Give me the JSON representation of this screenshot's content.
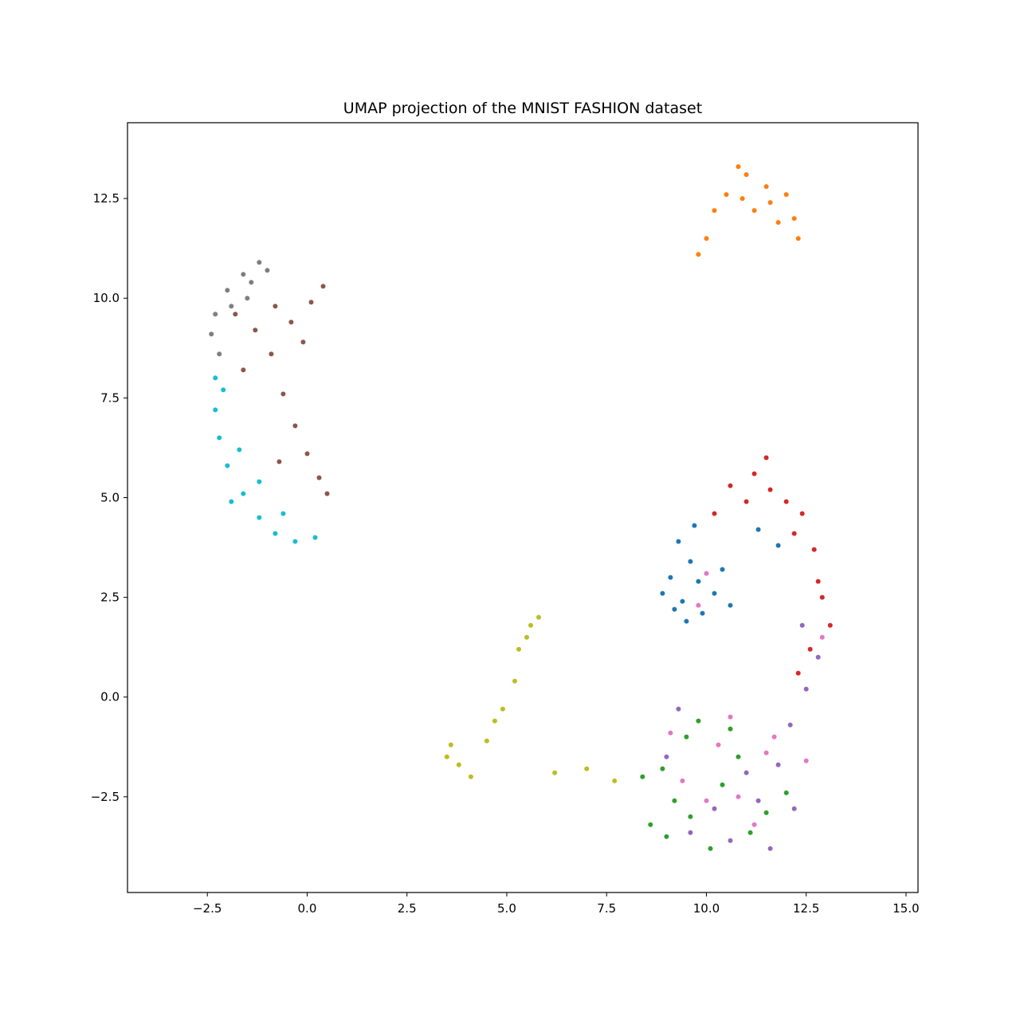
{
  "chart_data": {
    "type": "scatter",
    "title": "UMAP projection of the MNIST FASHION dataset",
    "xlabel": "",
    "ylabel": "",
    "xlim": [
      -4.5,
      15.3
    ],
    "ylim": [
      -4.9,
      14.4
    ],
    "xticks": [
      -2.5,
      0.0,
      2.5,
      5.0,
      7.5,
      10.0,
      12.5,
      15.0
    ],
    "xtick_labels": [
      "−2.5",
      "0.0",
      "2.5",
      "5.0",
      "7.5",
      "10.0",
      "12.5",
      "15.0"
    ],
    "yticks": [
      -2.5,
      0.0,
      2.5,
      5.0,
      7.5,
      10.0,
      12.5
    ],
    "ytick_labels": [
      "−2.5",
      "0.0",
      "2.5",
      "5.0",
      "7.5",
      "10.0",
      "12.5"
    ],
    "grid": false,
    "legend": "none",
    "clusters": [
      {
        "color": "#1f77b4",
        "points": [
          [
            9.3,
            3.9
          ],
          [
            9.6,
            3.4
          ],
          [
            9.8,
            2.9
          ],
          [
            9.4,
            2.4
          ],
          [
            9.9,
            2.1
          ],
          [
            10.2,
            2.6
          ],
          [
            9.1,
            3.0
          ],
          [
            8.9,
            2.6
          ],
          [
            9.7,
            4.3
          ],
          [
            10.4,
            3.2
          ],
          [
            9.5,
            1.9
          ],
          [
            10.6,
            2.3
          ],
          [
            11.3,
            4.2
          ],
          [
            11.8,
            3.8
          ],
          [
            9.2,
            2.2
          ]
        ]
      },
      {
        "color": "#ff7f0e",
        "points": [
          [
            10.5,
            12.6
          ],
          [
            11.0,
            13.1
          ],
          [
            11.5,
            12.8
          ],
          [
            12.0,
            12.6
          ],
          [
            11.2,
            12.2
          ],
          [
            11.8,
            11.9
          ],
          [
            12.2,
            12.0
          ],
          [
            10.2,
            12.2
          ],
          [
            10.0,
            11.5
          ],
          [
            9.8,
            11.1
          ],
          [
            11.6,
            12.4
          ],
          [
            10.8,
            13.3
          ],
          [
            12.3,
            11.5
          ],
          [
            10.9,
            12.5
          ]
        ]
      },
      {
        "color": "#2ca02c",
        "points": [
          [
            8.9,
            -1.8
          ],
          [
            9.2,
            -2.6
          ],
          [
            9.0,
            -3.5
          ],
          [
            9.6,
            -3.0
          ],
          [
            10.1,
            -3.8
          ],
          [
            10.4,
            -2.2
          ],
          [
            9.5,
            -1.0
          ],
          [
            11.5,
            -2.9
          ],
          [
            12.0,
            -2.4
          ],
          [
            10.8,
            -1.5
          ],
          [
            9.8,
            -0.6
          ],
          [
            8.6,
            -3.2
          ],
          [
            11.1,
            -3.4
          ],
          [
            8.4,
            -2.0
          ],
          [
            10.6,
            -0.8
          ]
        ]
      },
      {
        "color": "#d62728",
        "points": [
          [
            11.2,
            5.6
          ],
          [
            11.6,
            5.2
          ],
          [
            12.0,
            4.9
          ],
          [
            12.4,
            4.6
          ],
          [
            11.0,
            4.9
          ],
          [
            10.6,
            5.3
          ],
          [
            11.5,
            6.0
          ],
          [
            12.2,
            4.1
          ],
          [
            12.7,
            3.7
          ],
          [
            12.9,
            2.5
          ],
          [
            13.1,
            1.8
          ],
          [
            12.6,
            1.2
          ],
          [
            12.3,
            0.6
          ],
          [
            12.8,
            2.9
          ],
          [
            10.2,
            4.6
          ]
        ]
      },
      {
        "color": "#9467bd",
        "points": [
          [
            9.3,
            -0.3
          ],
          [
            9.0,
            -1.5
          ],
          [
            9.6,
            -3.4
          ],
          [
            10.6,
            -3.6
          ],
          [
            11.3,
            -2.6
          ],
          [
            11.8,
            -1.7
          ],
          [
            12.1,
            -0.7
          ],
          [
            12.5,
            0.2
          ],
          [
            12.8,
            1.0
          ],
          [
            12.2,
            -2.8
          ],
          [
            11.0,
            -1.9
          ],
          [
            10.2,
            -2.8
          ],
          [
            11.6,
            -3.8
          ],
          [
            12.4,
            1.8
          ]
        ]
      },
      {
        "color": "#8c564b",
        "points": [
          [
            -0.8,
            9.8
          ],
          [
            -0.4,
            9.4
          ],
          [
            0.1,
            9.9
          ],
          [
            0.4,
            10.3
          ],
          [
            -0.9,
            8.6
          ],
          [
            -0.6,
            7.6
          ],
          [
            -0.3,
            6.8
          ],
          [
            0.0,
            6.1
          ],
          [
            0.3,
            5.5
          ],
          [
            0.5,
            5.1
          ],
          [
            -1.3,
            9.2
          ],
          [
            -0.1,
            8.9
          ],
          [
            -1.6,
            8.2
          ],
          [
            -0.7,
            5.9
          ],
          [
            -1.8,
            9.6
          ]
        ]
      },
      {
        "color": "#e377c2",
        "points": [
          [
            10.0,
            -2.6
          ],
          [
            10.3,
            -1.2
          ],
          [
            9.4,
            -2.1
          ],
          [
            11.7,
            -1.0
          ],
          [
            11.2,
            -3.2
          ],
          [
            10.6,
            -0.5
          ],
          [
            9.8,
            2.3
          ],
          [
            10.0,
            3.1
          ],
          [
            12.5,
            -1.6
          ],
          [
            9.1,
            -0.9
          ],
          [
            10.8,
            -2.5
          ],
          [
            11.5,
            -1.4
          ],
          [
            12.9,
            1.5
          ]
        ]
      },
      {
        "color": "#7f7f7f",
        "points": [
          [
            -1.6,
            10.6
          ],
          [
            -1.2,
            10.9
          ],
          [
            -2.0,
            10.2
          ],
          [
            -1.5,
            10.0
          ],
          [
            -2.3,
            9.6
          ],
          [
            -1.0,
            10.7
          ],
          [
            -2.2,
            8.6
          ],
          [
            -1.9,
            9.8
          ],
          [
            -1.4,
            10.4
          ],
          [
            -2.4,
            9.1
          ]
        ]
      },
      {
        "color": "#bcbd22",
        "points": [
          [
            3.6,
            -1.2
          ],
          [
            3.8,
            -1.7
          ],
          [
            4.1,
            -2.0
          ],
          [
            4.5,
            -1.1
          ],
          [
            4.9,
            -0.3
          ],
          [
            5.2,
            0.4
          ],
          [
            5.3,
            1.2
          ],
          [
            5.6,
            1.8
          ],
          [
            5.8,
            2.0
          ],
          [
            6.2,
            -1.9
          ],
          [
            7.0,
            -1.8
          ],
          [
            7.7,
            -2.1
          ],
          [
            3.5,
            -1.5
          ],
          [
            5.5,
            1.5
          ],
          [
            4.7,
            -0.6
          ]
        ]
      },
      {
        "color": "#17becf",
        "points": [
          [
            -2.3,
            8.0
          ],
          [
            -2.3,
            7.2
          ],
          [
            -2.2,
            6.5
          ],
          [
            -2.0,
            5.8
          ],
          [
            -1.6,
            5.1
          ],
          [
            -1.2,
            4.5
          ],
          [
            -0.8,
            4.1
          ],
          [
            -0.3,
            3.9
          ],
          [
            0.2,
            4.0
          ],
          [
            -1.7,
            6.2
          ],
          [
            -1.2,
            5.4
          ],
          [
            -2.1,
            7.7
          ],
          [
            -0.6,
            4.6
          ],
          [
            -1.9,
            4.9
          ]
        ]
      }
    ]
  }
}
